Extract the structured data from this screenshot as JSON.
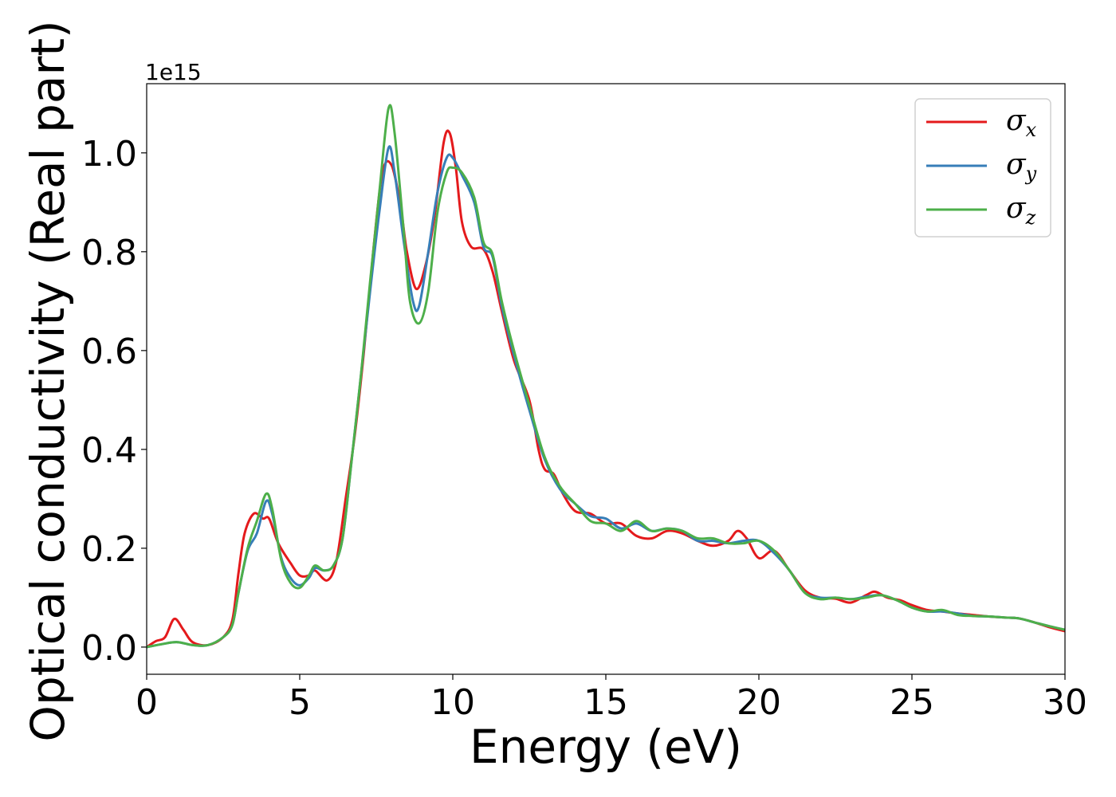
{
  "chart_data": {
    "type": "line",
    "xlabel": "Energy (eV)",
    "ylabel": "Optical conductivity (Real part)",
    "y_offset_label": "1e15",
    "y_scale": 1000000000000000.0,
    "xlim": [
      0,
      30
    ],
    "ylim": [
      -0.055,
      1.14
    ],
    "xticks": [
      0,
      5,
      10,
      15,
      20,
      25,
      30
    ],
    "xtick_labels": [
      "0",
      "5",
      "10",
      "15",
      "20",
      "25",
      "30"
    ],
    "yticks": [
      0.0,
      0.2,
      0.4,
      0.6,
      0.8,
      1.0
    ],
    "ytick_labels": [
      "0.0",
      "0.2",
      "0.4",
      "0.6",
      "0.8",
      "1.0"
    ],
    "grid": false,
    "legend_position": "top-right",
    "series": [
      {
        "name": "σx",
        "symbol": "σ",
        "subscript": "x",
        "color": "#e41a1c",
        "x": [
          0,
          0.3,
          0.6,
          0.9,
          1.2,
          1.5,
          2.0,
          2.5,
          2.8,
          3.0,
          3.2,
          3.5,
          3.8,
          4.0,
          4.3,
          4.7,
          5.0,
          5.3,
          5.5,
          5.9,
          6.2,
          6.5,
          6.8,
          7.1,
          7.4,
          7.7,
          8.0,
          8.3,
          8.5,
          8.8,
          9.1,
          9.4,
          9.7,
          9.9,
          10.1,
          10.3,
          10.6,
          11.0,
          11.3,
          11.6,
          12.0,
          12.5,
          12.8,
          13.0,
          13.3,
          13.6,
          14.0,
          14.5,
          15.0,
          15.5,
          16.0,
          16.5,
          17.0,
          17.5,
          18.0,
          18.5,
          19.0,
          19.3,
          19.6,
          20.0,
          20.5,
          21.0,
          21.5,
          22.0,
          22.5,
          23.0,
          23.5,
          23.8,
          24.2,
          24.6,
          25.0,
          25.5,
          26.0,
          26.5,
          27.0,
          27.5,
          28.0,
          28.5,
          29.0,
          29.5,
          30.0
        ],
        "values": [
          0.0,
          0.012,
          0.02,
          0.057,
          0.035,
          0.01,
          0.004,
          0.02,
          0.055,
          0.15,
          0.23,
          0.27,
          0.26,
          0.26,
          0.21,
          0.17,
          0.145,
          0.145,
          0.155,
          0.135,
          0.175,
          0.3,
          0.43,
          0.6,
          0.8,
          0.96,
          0.975,
          0.89,
          0.8,
          0.725,
          0.77,
          0.87,
          1.02,
          1.04,
          0.97,
          0.86,
          0.81,
          0.805,
          0.76,
          0.68,
          0.58,
          0.5,
          0.4,
          0.36,
          0.35,
          0.31,
          0.275,
          0.27,
          0.25,
          0.25,
          0.225,
          0.22,
          0.235,
          0.23,
          0.215,
          0.205,
          0.215,
          0.235,
          0.22,
          0.18,
          0.195,
          0.155,
          0.115,
          0.1,
          0.098,
          0.09,
          0.105,
          0.112,
          0.1,
          0.095,
          0.085,
          0.075,
          0.072,
          0.068,
          0.065,
          0.062,
          0.06,
          0.058,
          0.05,
          0.04,
          0.032
        ]
      },
      {
        "name": "σy",
        "symbol": "σ",
        "subscript": "y",
        "color": "#377eb8",
        "x": [
          0,
          0.5,
          1.0,
          1.5,
          2.0,
          2.5,
          2.8,
          3.0,
          3.3,
          3.6,
          3.9,
          4.1,
          4.4,
          4.7,
          5.0,
          5.3,
          5.5,
          5.8,
          6.1,
          6.4,
          6.7,
          7.0,
          7.3,
          7.6,
          7.9,
          8.1,
          8.4,
          8.7,
          8.9,
          9.2,
          9.5,
          9.8,
          10.0,
          10.3,
          10.7,
          11.0,
          11.3,
          11.6,
          12.0,
          12.5,
          13.0,
          13.5,
          14.0,
          14.5,
          15.0,
          15.5,
          16.0,
          16.5,
          17.0,
          17.5,
          18.0,
          18.5,
          19.0,
          19.5,
          20.0,
          20.5,
          21.0,
          21.5,
          22.0,
          22.5,
          23.0,
          23.5,
          24.0,
          24.5,
          25.0,
          25.5,
          26.0,
          26.5,
          27.0,
          27.5,
          28.0,
          28.5,
          29.0,
          29.5,
          30.0
        ],
        "values": [
          0.0,
          0.006,
          0.01,
          0.004,
          0.004,
          0.02,
          0.045,
          0.11,
          0.195,
          0.23,
          0.295,
          0.27,
          0.18,
          0.14,
          0.125,
          0.14,
          0.16,
          0.155,
          0.165,
          0.22,
          0.38,
          0.55,
          0.72,
          0.88,
          1.01,
          0.96,
          0.82,
          0.7,
          0.69,
          0.8,
          0.92,
          0.99,
          0.99,
          0.955,
          0.9,
          0.81,
          0.79,
          0.69,
          0.59,
          0.48,
          0.38,
          0.32,
          0.29,
          0.265,
          0.26,
          0.24,
          0.25,
          0.235,
          0.24,
          0.235,
          0.215,
          0.215,
          0.21,
          0.215,
          0.215,
          0.19,
          0.155,
          0.11,
          0.1,
          0.1,
          0.097,
          0.102,
          0.105,
          0.095,
          0.08,
          0.072,
          0.072,
          0.068,
          0.063,
          0.062,
          0.06,
          0.058,
          0.05,
          0.042,
          0.035
        ]
      },
      {
        "name": "σz",
        "symbol": "σ",
        "subscript": "z",
        "color": "#4daf4a",
        "x": [
          0,
          0.5,
          1.0,
          1.5,
          2.0,
          2.5,
          2.8,
          3.0,
          3.3,
          3.6,
          3.9,
          4.1,
          4.4,
          4.7,
          5.0,
          5.3,
          5.5,
          5.8,
          6.1,
          6.4,
          6.7,
          7.0,
          7.3,
          7.6,
          7.9,
          8.1,
          8.4,
          8.6,
          8.9,
          9.2,
          9.5,
          9.8,
          10.0,
          10.3,
          10.7,
          11.0,
          11.3,
          11.6,
          12.0,
          12.5,
          13.0,
          13.5,
          14.0,
          14.5,
          15.0,
          15.5,
          16.0,
          16.5,
          17.0,
          17.5,
          18.0,
          18.5,
          19.0,
          19.5,
          20.0,
          20.5,
          21.0,
          21.5,
          22.0,
          22.5,
          23.0,
          23.5,
          24.0,
          24.5,
          25.0,
          25.5,
          26.0,
          26.5,
          27.0,
          27.5,
          28.0,
          28.5,
          29.0,
          29.5,
          30.0
        ],
        "values": [
          0.0,
          0.006,
          0.01,
          0.004,
          0.004,
          0.02,
          0.045,
          0.11,
          0.2,
          0.255,
          0.31,
          0.28,
          0.175,
          0.13,
          0.12,
          0.145,
          0.165,
          0.155,
          0.165,
          0.22,
          0.38,
          0.55,
          0.74,
          0.92,
          1.09,
          1.04,
          0.84,
          0.7,
          0.655,
          0.72,
          0.88,
          0.96,
          0.97,
          0.96,
          0.91,
          0.82,
          0.795,
          0.7,
          0.6,
          0.49,
          0.385,
          0.325,
          0.29,
          0.255,
          0.25,
          0.235,
          0.255,
          0.235,
          0.24,
          0.235,
          0.22,
          0.22,
          0.21,
          0.21,
          0.215,
          0.195,
          0.155,
          0.11,
          0.097,
          0.1,
          0.097,
          0.1,
          0.105,
          0.095,
          0.08,
          0.072,
          0.075,
          0.065,
          0.063,
          0.062,
          0.06,
          0.058,
          0.05,
          0.042,
          0.035
        ]
      }
    ]
  }
}
